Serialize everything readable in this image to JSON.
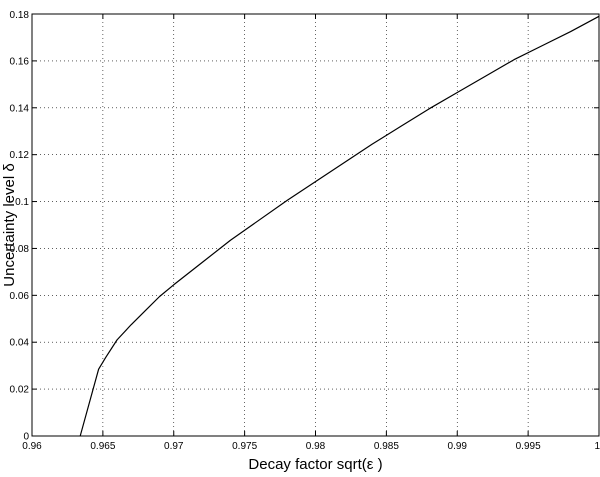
{
  "chart_data": {
    "type": "line",
    "title": "",
    "xlabel": "Decay factor sqrt(ε )",
    "ylabel": "Uncertainty level δ",
    "xlim": [
      0.96,
      1.0
    ],
    "ylim": [
      0,
      0.18
    ],
    "xticks": [
      0.96,
      0.965,
      0.97,
      0.975,
      0.98,
      0.985,
      0.99,
      0.995,
      1.0
    ],
    "xtick_labels": [
      "0.96",
      "0.965",
      "0.97",
      "0.975",
      "0.98",
      "0.985",
      "0.99",
      "0.995",
      "1"
    ],
    "yticks": [
      0,
      0.02,
      0.04,
      0.06,
      0.08,
      0.1,
      0.12,
      0.14,
      0.16,
      0.18
    ],
    "ytick_labels": [
      "0",
      "0.02",
      "0.04",
      "0.06",
      "0.08",
      "0.1",
      "0.12",
      "0.14",
      "0.16",
      "0.18"
    ],
    "grid": true,
    "series": [
      {
        "color": "#000000",
        "x": [
          0.9634,
          0.9647,
          0.9652,
          0.966,
          0.967,
          0.968,
          0.969,
          0.97,
          0.972,
          0.974,
          0.976,
          0.978,
          0.98,
          0.982,
          0.984,
          0.986,
          0.988,
          0.99,
          0.992,
          0.994,
          0.996,
          0.998,
          1.0
        ],
        "y": [
          0.0,
          0.0285,
          0.0335,
          0.041,
          0.0475,
          0.0535,
          0.0595,
          0.0645,
          0.074,
          0.0835,
          0.092,
          0.1005,
          0.1085,
          0.1165,
          0.1245,
          0.132,
          0.1395,
          0.1465,
          0.1535,
          0.1605,
          0.1665,
          0.1725,
          0.179
        ]
      }
    ]
  }
}
